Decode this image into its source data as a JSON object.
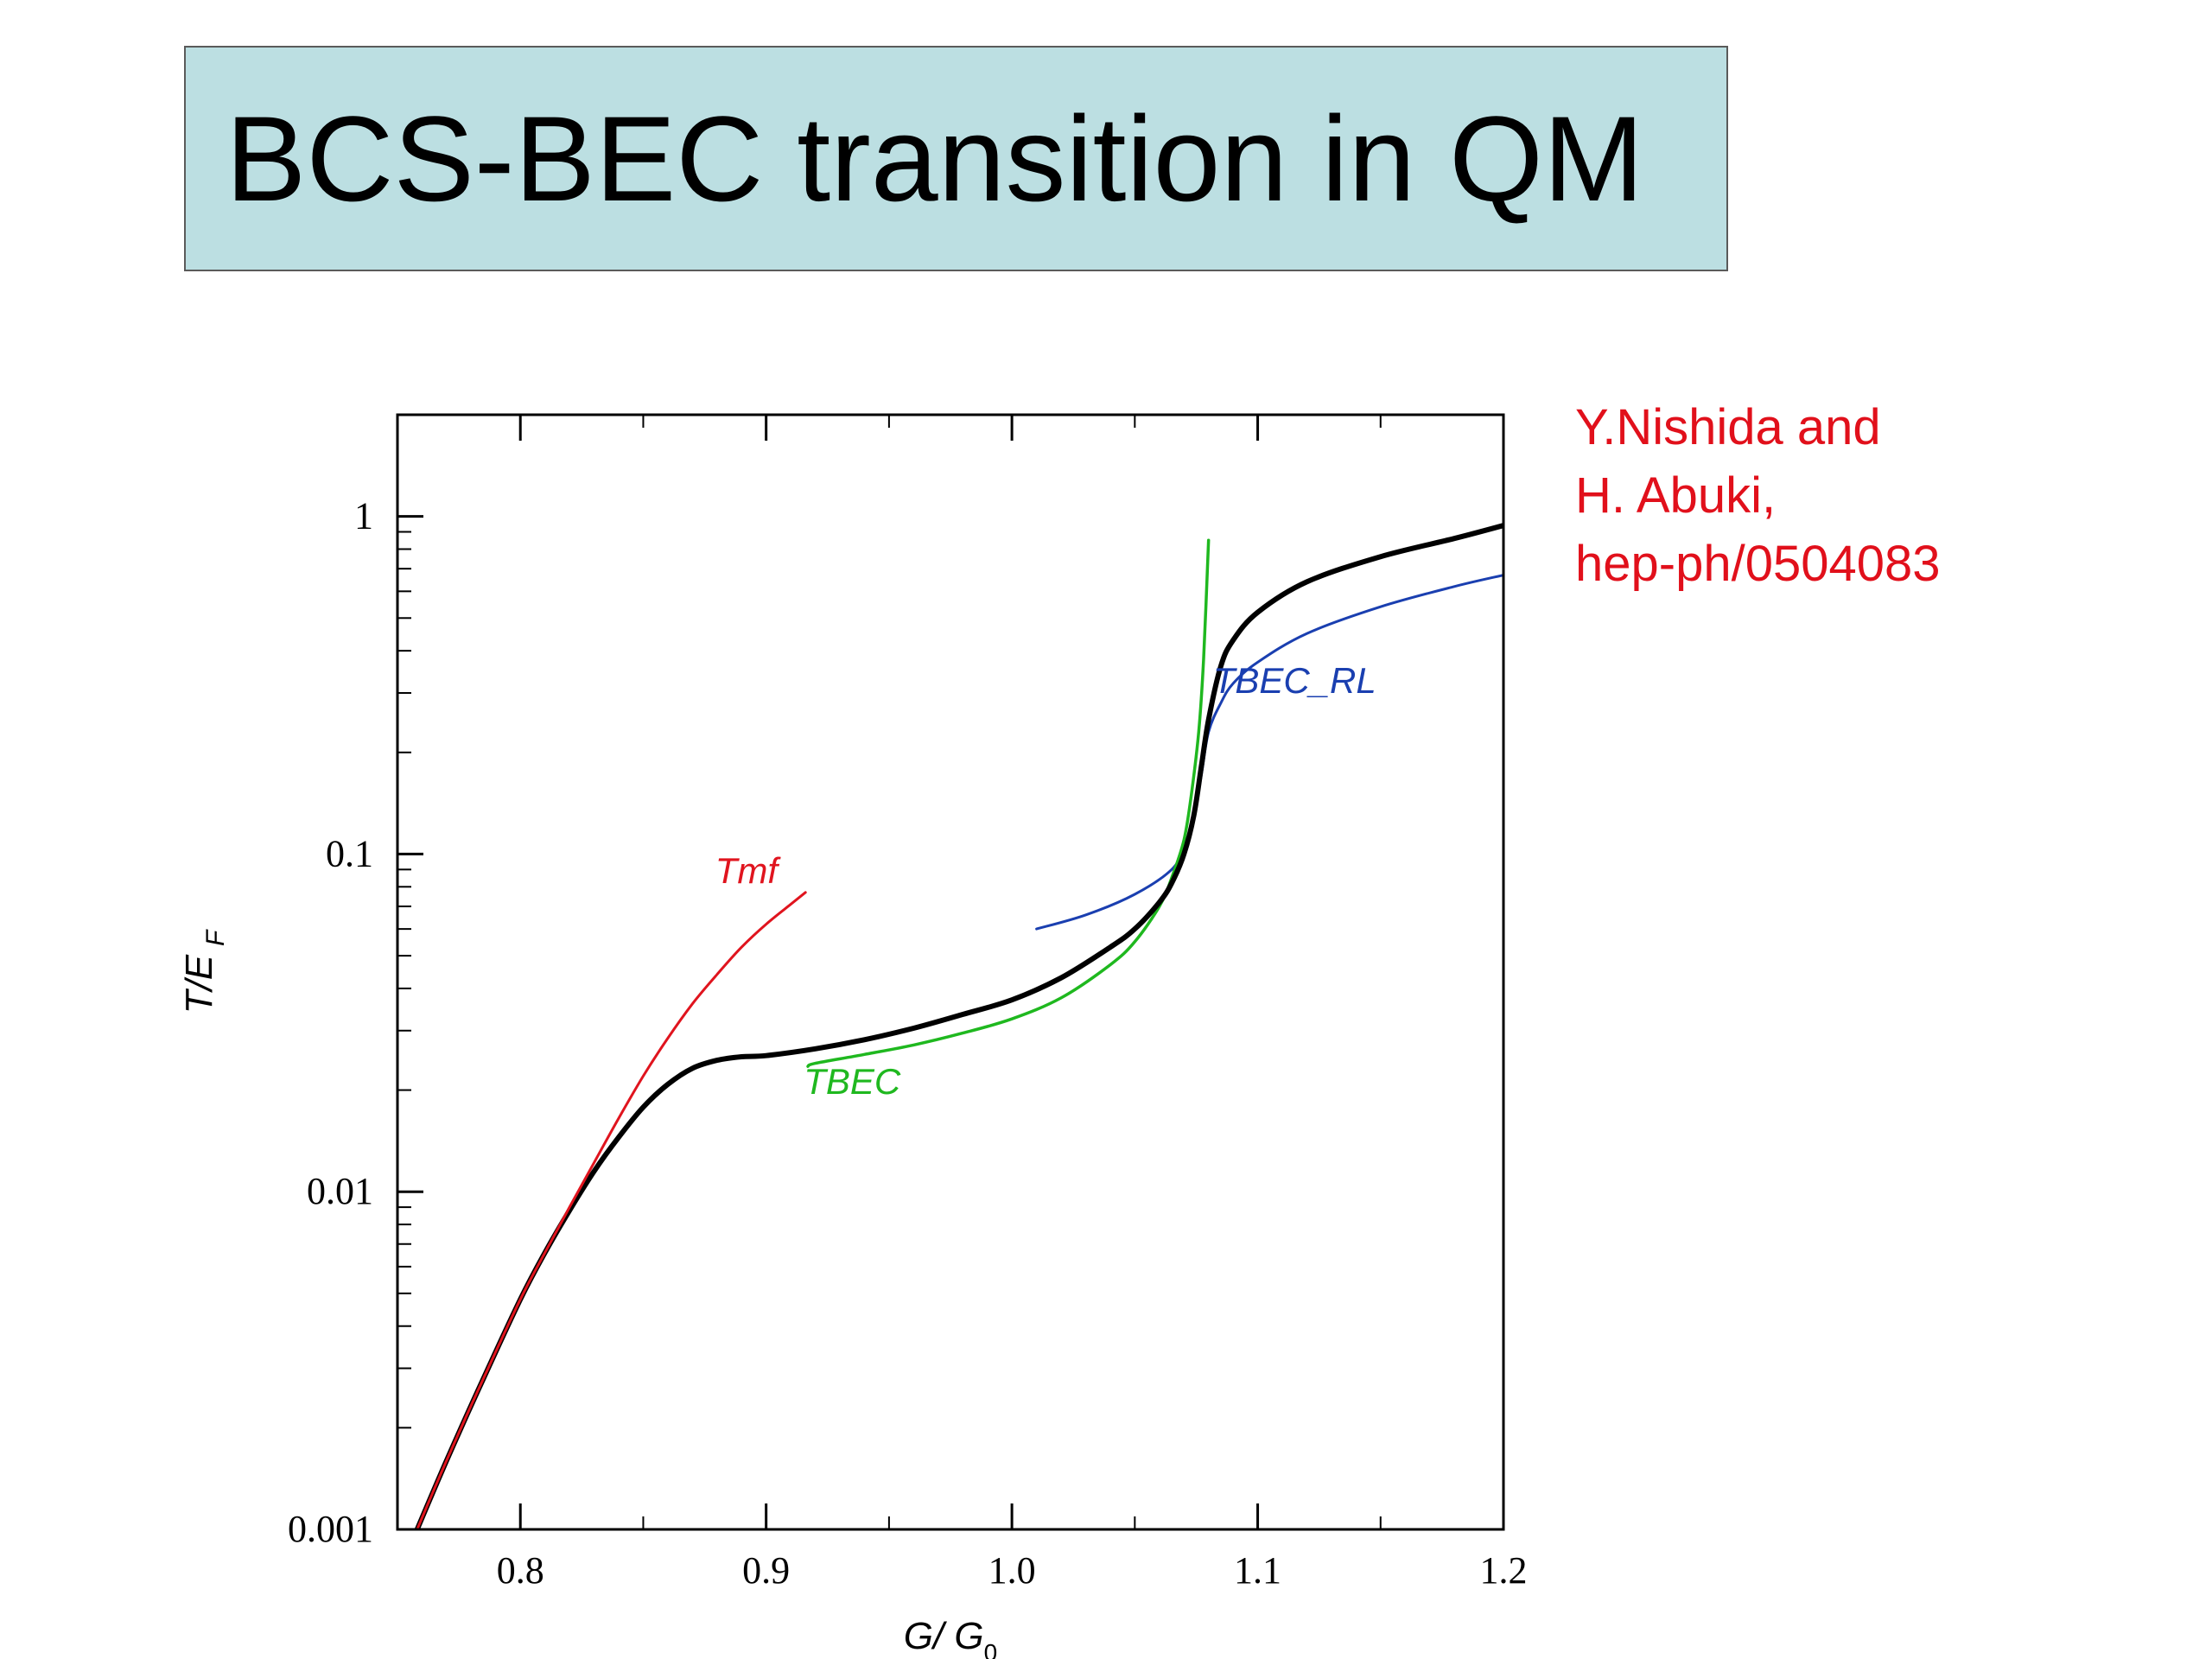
{
  "slide": {
    "title": "BCS-BEC transition in QM",
    "citation": [
      "Y.Nishida and",
      "H. Abuki,",
      "hep-ph/0504083"
    ]
  },
  "colors": {
    "title_bg": "#bcdfe2",
    "citation": "#e1101b",
    "black_curve": "#000000",
    "tmf": "#e0141e",
    "tbec": "#1fb81f",
    "tbec_rl": "#1a3fb0"
  },
  "chart_data": {
    "type": "line",
    "xlabel_main": "G/ G",
    "xlabel_sub": "0",
    "ylabel_main": "T/E",
    "ylabel_sub": "F",
    "xlim": [
      0.75,
      1.2
    ],
    "ylim": [
      0.001,
      2
    ],
    "yscale": "log",
    "xticks": [
      0.8,
      0.9,
      1.0,
      1.1,
      1.2
    ],
    "xtick_labels": [
      "0.8",
      "0.9",
      "1.0",
      "1.1",
      "1.2"
    ],
    "yticks": [
      0.001,
      0.01,
      0.1,
      1
    ],
    "ytick_labels": [
      "0.001",
      "0.01",
      "0.1",
      "1"
    ],
    "series": [
      {
        "key": "tc",
        "color": "#000000",
        "x": [
          0.758,
          0.77,
          0.785,
          0.8,
          0.81,
          0.82,
          0.83,
          0.84,
          0.85,
          0.86,
          0.87,
          0.88,
          0.89,
          0.9,
          0.92,
          0.94,
          0.96,
          0.98,
          1.0,
          1.02,
          1.04,
          1.05,
          1.06,
          1.065,
          1.07,
          1.074,
          1.077,
          1.08,
          1.085,
          1.09,
          1.1,
          1.12,
          1.15,
          1.18,
          1.2
        ],
        "y": [
          0.001,
          0.0016,
          0.0028,
          0.0048,
          0.0066,
          0.0088,
          0.0115,
          0.0145,
          0.0178,
          0.0208,
          0.0232,
          0.0245,
          0.0251,
          0.0253,
          0.0265,
          0.0282,
          0.0305,
          0.0335,
          0.037,
          0.043,
          0.053,
          0.06,
          0.072,
          0.082,
          0.1,
          0.13,
          0.18,
          0.25,
          0.36,
          0.43,
          0.52,
          0.64,
          0.76,
          0.86,
          0.94
        ]
      },
      {
        "key": "tmf",
        "name": "Tmf",
        "color": "#e0141e",
        "x": [
          0.758,
          0.77,
          0.785,
          0.8,
          0.81,
          0.82,
          0.83,
          0.84,
          0.85,
          0.86,
          0.87,
          0.88,
          0.89,
          0.9,
          0.91,
          0.916
        ],
        "y": [
          0.001,
          0.0016,
          0.0028,
          0.0048,
          0.0066,
          0.009,
          0.0122,
          0.0165,
          0.022,
          0.0285,
          0.036,
          0.044,
          0.053,
          0.062,
          0.071,
          0.077
        ]
      },
      {
        "key": "tbec",
        "name": "TBEC",
        "color": "#1fb81f",
        "x": [
          0.917,
          0.92,
          0.94,
          0.96,
          0.98,
          1.0,
          1.02,
          1.04,
          1.05,
          1.06,
          1.065,
          1.07,
          1.073,
          1.076,
          1.078,
          1.08
        ],
        "y": [
          0.0235,
          0.024,
          0.0255,
          0.0272,
          0.0295,
          0.0325,
          0.0375,
          0.047,
          0.055,
          0.07,
          0.085,
          0.11,
          0.15,
          0.23,
          0.38,
          0.85
        ]
      },
      {
        "key": "tbec_rl",
        "name": "TBEC_RL",
        "color": "#1a3fb0",
        "x": [
          1.01,
          1.03,
          1.05,
          1.065,
          1.07,
          1.074,
          1.077,
          1.08,
          1.085,
          1.09,
          1.1,
          1.12,
          1.15,
          1.18,
          1.2
        ],
        "y": [
          0.06,
          0.066,
          0.076,
          0.09,
          0.105,
          0.13,
          0.17,
          0.23,
          0.28,
          0.32,
          0.37,
          0.45,
          0.54,
          0.62,
          0.67
        ]
      }
    ],
    "annotations": [
      {
        "text": "Tmf",
        "color": "#e0141e",
        "x": 0.892,
        "y": 0.082
      },
      {
        "text": "TBEC",
        "color": "#1fb81f",
        "x": 0.935,
        "y": 0.0195
      },
      {
        "text": "TBEC_RL",
        "color": "#1a3fb0",
        "x": 1.115,
        "y": 0.3
      }
    ]
  }
}
